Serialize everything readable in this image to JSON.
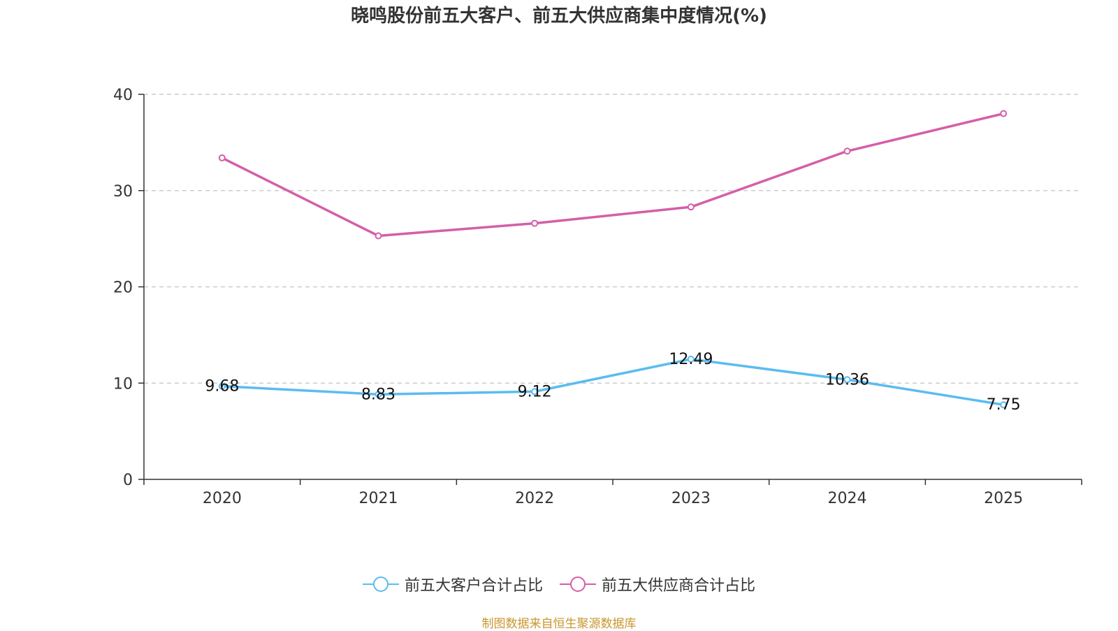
{
  "chart_data": {
    "type": "line",
    "title": "晓鸣股份前五大客户、前五大供应商集中度情况(%)",
    "categories": [
      "2020",
      "2021",
      "2022",
      "2023",
      "2024",
      "2025"
    ],
    "ylim": [
      0,
      40
    ],
    "yticks": [
      0,
      10,
      20,
      30,
      40
    ],
    "grid": "horizontal-dashed",
    "legend_position": "bottom",
    "series": [
      {
        "name": "前五大客户合计占比",
        "color": "#5bbcf0",
        "values": [
          9.68,
          8.83,
          9.12,
          12.49,
          10.36,
          7.75
        ],
        "labels": [
          "9.68",
          "8.83",
          "9.12",
          "12.49",
          "10.36",
          "7.75"
        ],
        "show_labels": true
      },
      {
        "name": "前五大供应商合计占比",
        "color": "#d45fa8",
        "values": [
          33.4,
          25.3,
          26.6,
          28.3,
          34.1,
          38.0
        ],
        "show_labels": false
      }
    ]
  },
  "source_note": "制图数据来自恒生聚源数据库"
}
